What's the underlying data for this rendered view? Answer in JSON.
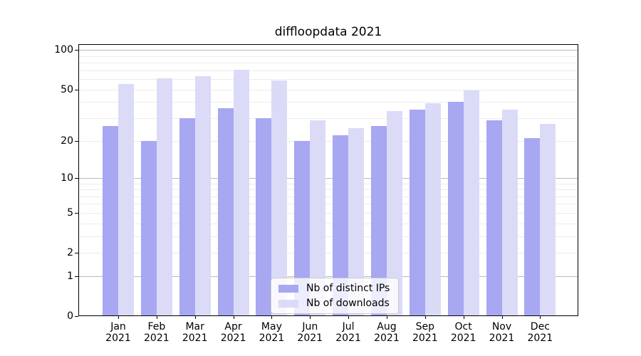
{
  "chart_data": {
    "type": "bar",
    "title": "diffloopdata 2021",
    "categories": [
      "Jan",
      "Feb",
      "Mar",
      "Apr",
      "May",
      "Jun",
      "Jul",
      "Aug",
      "Sep",
      "Oct",
      "Nov",
      "Dec"
    ],
    "category_year": "2021",
    "series": [
      {
        "name": "Nb of distinct IPs",
        "color": "#a7a7f2",
        "values": [
          26,
          20,
          30,
          36,
          30,
          20,
          22,
          26,
          35,
          40,
          29,
          21
        ]
      },
      {
        "name": "Nb of downloads",
        "color": "#dbdbf8",
        "values": [
          55,
          61,
          63,
          71,
          59,
          29,
          25,
          34,
          39,
          49,
          35,
          27
        ]
      }
    ],
    "xlabel": "",
    "ylabel": "",
    "yscale": "log1p",
    "ylim": [
      0,
      111
    ],
    "yticks": [
      0,
      1,
      2,
      5,
      10,
      20,
      50,
      100
    ],
    "major_gridlines": [
      1,
      10,
      100
    ],
    "minor_gridlines": [
      2,
      3,
      4,
      5,
      6,
      7,
      8,
      9,
      20,
      30,
      40,
      50,
      60,
      70,
      80,
      90
    ],
    "grid": true,
    "legend_position": "lower center"
  },
  "colors": {
    "background": "#ffffff",
    "spine": "#000000",
    "major_grid": "#b9b9b9",
    "minor_grid": "#ececec",
    "legend_border": "#cccccc",
    "text": "#000000"
  }
}
